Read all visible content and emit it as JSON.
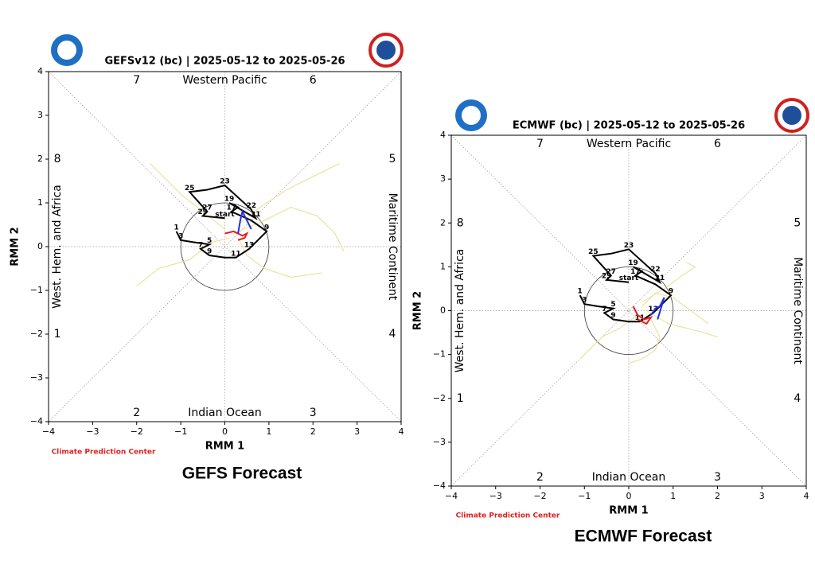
{
  "chart_data": [
    {
      "type": "line",
      "title": "GEFSv12 (bc) | 2025-05-12 to 2025-05-26",
      "xlabel": "RMM 1",
      "ylabel": "RMM 2",
      "xlim": [
        -4,
        4
      ],
      "ylim": [
        -4,
        4
      ],
      "xticks": [
        {
          "value": -4,
          "label": "−4"
        },
        {
          "value": -3,
          "label": "−3"
        },
        {
          "value": -2,
          "label": "−2"
        },
        {
          "value": -1,
          "label": "−1"
        },
        0,
        1,
        2,
        3,
        4
      ],
      "yticks": [
        {
          "value": -4,
          "label": "−4"
        },
        {
          "value": -3,
          "label": "−3"
        },
        {
          "value": -2,
          "label": "−2"
        },
        {
          "value": -1,
          "label": "−1"
        },
        0,
        1,
        2,
        3,
        4
      ],
      "phase_labels": [
        1,
        2,
        3,
        4,
        5,
        6,
        7,
        8
      ],
      "region_labels": [
        "Indian Ocean",
        "Maritime Continent",
        "Western Pacific",
        "West. Hem. and Africa"
      ],
      "source": "Climate Prediction Center",
      "caption": "GEFS Forecast",
      "series": [
        {
          "color": "#e6e08a",
          "x": [
            0.3,
            0.8,
            1.4,
            2.0,
            2.4,
            2.6
          ],
          "y": [
            0.5,
            0.9,
            1.3,
            1.6,
            1.8,
            1.9
          ]
        },
        {
          "color": "#e6e08a",
          "x": [
            0.2,
            0.9,
            1.5,
            2.1,
            2.5,
            2.7
          ],
          "y": [
            0.3,
            0.6,
            0.9,
            0.7,
            0.3,
            -0.1
          ]
        },
        {
          "color": "#e6e08a",
          "x": [
            0.0,
            -0.5,
            -1.0,
            -1.4,
            -1.7
          ],
          "y": [
            0.4,
            0.8,
            1.2,
            1.6,
            1.9
          ]
        },
        {
          "color": "#e6e08a",
          "x": [
            0.3,
            0.5,
            0.9,
            1.5,
            2.2
          ],
          "y": [
            0.2,
            -0.2,
            -0.5,
            -0.7,
            -0.6
          ]
        },
        {
          "color": "#e6e08a",
          "x": [
            0.1,
            -0.3,
            -0.8,
            -1.5,
            -2.0
          ],
          "y": [
            0.2,
            0.1,
            -0.3,
            -0.5,
            -0.9
          ]
        },
        {
          "color": "#000000",
          "x": [
            -1.1,
            -1.05,
            -1.0,
            -0.7,
            -0.35,
            -0.55,
            -0.35,
            0.0,
            0.25,
            0.55,
            0.95,
            0.6,
            0.15,
            0.3,
            0.1,
            0.7,
            0.6,
            0.0,
            -0.4,
            -0.8,
            -0.4,
            -0.5,
            0.0
          ],
          "y": [
            0.35,
            0.25,
            0.15,
            0.1,
            0.05,
            -0.05,
            -0.2,
            -0.25,
            -0.25,
            -0.05,
            0.35,
            0.6,
            0.8,
            0.9,
            1.0,
            0.65,
            0.85,
            1.4,
            1.3,
            1.25,
            0.8,
            0.7,
            0.65
          ],
          "labels": [
            1,
            null,
            3,
            null,
            5,
            7,
            9,
            null,
            11,
            13,
            9,
            null,
            17,
            null,
            19,
            21,
            22,
            23,
            null,
            25,
            27,
            29,
            "start"
          ]
        },
        {
          "color": "#e02020",
          "x": [
            0.0,
            0.2,
            0.4,
            0.5,
            0.45,
            0.3
          ],
          "y": [
            0.3,
            0.35,
            0.25,
            0.3,
            0.2,
            0.15
          ]
        },
        {
          "color": "#2030e0",
          "x": [
            0.3,
            0.35,
            0.4,
            0.5,
            0.6
          ],
          "y": [
            0.3,
            0.6,
            0.8,
            0.6,
            0.4
          ]
        }
      ]
    },
    {
      "type": "line",
      "title": "ECMWF (bc) | 2025-05-12 to 2025-05-26",
      "xlabel": "RMM 1",
      "ylabel": "RMM 2",
      "xlim": [
        -4,
        4
      ],
      "ylim": [
        -4,
        4
      ],
      "xticks": [
        {
          "value": -4,
          "label": "−4"
        },
        {
          "value": -3,
          "label": "−3"
        },
        {
          "value": -2,
          "label": "−2"
        },
        {
          "value": -1,
          "label": "−1"
        },
        0,
        1,
        2,
        3,
        4
      ],
      "yticks": [
        {
          "value": -4,
          "label": "−4"
        },
        {
          "value": -3,
          "label": "−3"
        },
        {
          "value": -2,
          "label": "−2"
        },
        {
          "value": -1,
          "label": "−1"
        },
        0,
        1,
        2,
        3,
        4
      ],
      "phase_labels": [
        1,
        2,
        3,
        4,
        5,
        6,
        7,
        8
      ],
      "region_labels": [
        "Indian Ocean",
        "Maritime Continent",
        "Western Pacific",
        "West. Hem. and Africa"
      ],
      "source": "Climate Prediction Center",
      "caption": "ECMWF Forecast",
      "series": [
        {
          "color": "#e6e08a",
          "x": [
            0.4,
            0.9,
            1.3,
            1.7,
            2.0
          ],
          "y": [
            0.0,
            -0.3,
            -0.4,
            -0.5,
            -0.6
          ]
        },
        {
          "color": "#e6e08a",
          "x": [
            0.3,
            0.8,
            1.2,
            1.5,
            1.3
          ],
          "y": [
            0.2,
            0.5,
            0.8,
            1.0,
            1.1
          ]
        },
        {
          "color": "#e6e08a",
          "x": [
            0.2,
            -0.2,
            -0.6,
            -0.9,
            -1.1
          ],
          "y": [
            -0.1,
            -0.4,
            -0.6,
            -0.9,
            -1.1
          ]
        },
        {
          "color": "#e6e08a",
          "x": [
            0.5,
            0.7,
            0.6,
            0.3,
            0.0
          ],
          "y": [
            -0.2,
            -0.6,
            -0.9,
            -1.1,
            -1.2
          ]
        },
        {
          "color": "#e6e08a",
          "x": [
            0.3,
            0.6,
            1.0,
            1.4,
            1.8
          ],
          "y": [
            0.1,
            0.4,
            0.3,
            0.0,
            -0.3
          ]
        },
        {
          "color": "#000000",
          "x": [
            -1.1,
            -1.05,
            -1.0,
            -0.7,
            -0.35,
            -0.55,
            -0.35,
            0.0,
            0.25,
            0.55,
            0.95,
            0.6,
            0.15,
            0.3,
            0.1,
            0.7,
            0.6,
            0.0,
            -0.4,
            -0.8,
            -0.4,
            -0.5,
            0.0
          ],
          "y": [
            0.35,
            0.25,
            0.15,
            0.1,
            0.05,
            -0.05,
            -0.2,
            -0.25,
            -0.25,
            -0.05,
            0.35,
            0.6,
            0.8,
            0.9,
            1.0,
            0.65,
            0.85,
            1.4,
            1.3,
            1.25,
            0.8,
            0.7,
            0.65
          ],
          "labels": [
            1,
            null,
            3,
            null,
            5,
            7,
            9,
            null,
            11,
            13,
            9,
            null,
            17,
            null,
            19,
            21,
            22,
            23,
            null,
            25,
            27,
            29,
            "start"
          ]
        },
        {
          "color": "#e02020",
          "x": [
            0.1,
            0.2,
            0.35,
            0.5,
            0.4,
            0.2
          ],
          "y": [
            0.1,
            -0.1,
            -0.2,
            -0.15,
            -0.3,
            -0.2
          ]
        },
        {
          "color": "#2030e0",
          "x": [
            0.5,
            0.6,
            0.7,
            0.8,
            0.65
          ],
          "y": [
            -0.1,
            0.05,
            0.1,
            0.3,
            -0.2
          ]
        }
      ]
    }
  ]
}
